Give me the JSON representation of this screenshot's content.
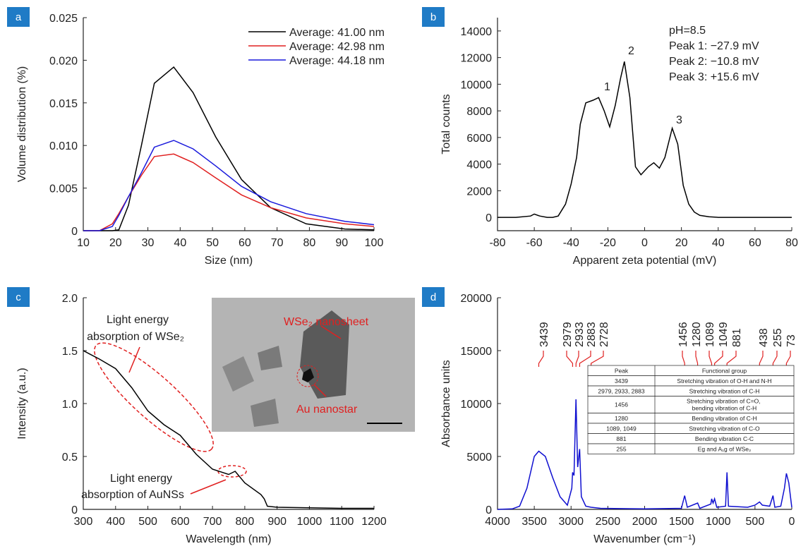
{
  "chart_data": [
    {
      "type": "line",
      "panel_label": "a",
      "xlabel": "Size (nm)",
      "ylabel": "Volume distribution (%)",
      "x": [
        10,
        15,
        19,
        21,
        24,
        28,
        32,
        38,
        44,
        51,
        59,
        68,
        79,
        91,
        100
      ],
      "series": [
        {
          "name": "Average: 41.00 nm",
          "color": "#000000",
          "values": [
            0,
            0,
            0,
            0.0001,
            0.003,
            0.01,
            0.0173,
            0.0192,
            0.0162,
            0.011,
            0.006,
            0.0027,
            0.0008,
            0.0002,
            0.0001
          ]
        },
        {
          "name": "Average: 42.98 nm",
          "color": "#e02020",
          "values": [
            0,
            0,
            0.0008,
            0.002,
            0.004,
            0.0065,
            0.0087,
            0.009,
            0.008,
            0.0062,
            0.0042,
            0.0027,
            0.0015,
            0.0008,
            0.0005
          ]
        },
        {
          "name": "Average: 44.18 nm",
          "color": "#1a1adc",
          "values": [
            0,
            0,
            0.0005,
            0.0018,
            0.004,
            0.0068,
            0.0098,
            0.0106,
            0.0096,
            0.0076,
            0.0052,
            0.0034,
            0.002,
            0.0011,
            0.0007
          ]
        }
      ],
      "xlim": [
        10,
        100
      ],
      "xticks": [
        10,
        20,
        30,
        40,
        50,
        60,
        70,
        80,
        90,
        100
      ],
      "ylim": [
        0,
        0.025
      ],
      "yticks": [
        0,
        0.005,
        {
          "value": 0.01,
          "label": "0.010"
        },
        0.015,
        {
          "value": 0.02,
          "label": "0.020"
        },
        0.025
      ],
      "legend": "upper right"
    },
    {
      "type": "line",
      "panel_label": "b",
      "xlabel": "Apparent zeta potential (mV)",
      "ylabel": "Total counts",
      "x": [
        -80,
        -70,
        -62,
        -60,
        -57,
        -53,
        -50,
        -47,
        -43,
        -40,
        -37,
        -35,
        -32,
        -28,
        -25,
        -22,
        -19,
        -16,
        -13,
        -11,
        -8,
        -5,
        -2,
        2,
        5,
        8,
        11,
        15,
        18,
        21,
        24,
        27,
        30,
        35,
        40,
        50,
        80
      ],
      "series": [
        {
          "color": "#000000",
          "values": [
            0,
            0,
            100,
            250,
            100,
            0,
            0,
            100,
            1000,
            2500,
            4500,
            7000,
            8600,
            8800,
            9000,
            8000,
            6800,
            8400,
            10500,
            11700,
            9000,
            3800,
            3200,
            3800,
            4100,
            3700,
            4500,
            6700,
            5500,
            2400,
            1000,
            400,
            150,
            50,
            0,
            0,
            0
          ]
        }
      ],
      "xlim": [
        -80,
        80
      ],
      "xticks": [
        -80,
        -60,
        -40,
        -20,
        0,
        20,
        40,
        60,
        80
      ],
      "ylim": [
        -1000,
        15000
      ],
      "yticks": [
        0,
        2000,
        4000,
        6000,
        8000,
        10000,
        12000,
        14000
      ],
      "annotations": [
        "1",
        "2",
        "3",
        "pH=8.5",
        "Peak 1: −27.9 mV",
        "Peak 2: −10.8 mV",
        "Peak 3: +15.6 mV"
      ]
    },
    {
      "type": "line",
      "panel_label": "c",
      "xlabel": "Wavelength (nm)",
      "ylabel": "Intensity (a.u.)",
      "x": [
        300,
        350,
        400,
        450,
        500,
        550,
        600,
        650,
        700,
        750,
        770,
        800,
        850,
        860,
        870,
        900,
        1000,
        1100,
        1200
      ],
      "series": [
        {
          "color": "#000000",
          "values": [
            1.5,
            1.42,
            1.33,
            1.15,
            0.93,
            0.8,
            0.7,
            0.52,
            0.38,
            0.33,
            0.36,
            0.25,
            0.14,
            0.1,
            0.03,
            0.02,
            0.015,
            0.01,
            0.01
          ]
        }
      ],
      "xlim": [
        300,
        1200
      ],
      "xticks": [
        300,
        400,
        500,
        600,
        700,
        800,
        900,
        1000,
        1100,
        1200
      ],
      "ylim": [
        0,
        2
      ],
      "yticks": [
        0,
        0.5,
        {
          "value": 1,
          "label": "1.0"
        },
        1.5,
        {
          "value": 2,
          "label": "2.0"
        }
      ],
      "annotations": [
        "Light energy",
        "absorption of WSe₂",
        "Light energy",
        "absorption of AuNSs",
        "WSe₂ nanosheet",
        "Au nanostar"
      ]
    },
    {
      "type": "line",
      "panel_label": "d",
      "xlabel": "Wavenumber (cm⁻¹)",
      "ylabel": "Absorbance units",
      "x": [
        4000,
        3800,
        3700,
        3600,
        3500,
        3439,
        3350,
        3250,
        3150,
        3050,
        2990,
        2979,
        2960,
        2933,
        2910,
        2883,
        2860,
        2800,
        2728,
        2600,
        2000,
        1500,
        1456,
        1420,
        1280,
        1250,
        1100,
        1089,
        1070,
        1049,
        1020,
        900,
        881,
        860,
        600,
        500,
        438,
        400,
        300,
        255,
        230,
        150,
        100,
        73,
        40,
        0
      ],
      "series": [
        {
          "color": "#1010d0",
          "values": [
            0,
            50,
            300,
            2000,
            5000,
            5500,
            5000,
            3000,
            1200,
            400,
            2000,
            3500,
            3200,
            10400,
            4000,
            5700,
            1200,
            300,
            200,
            100,
            50,
            100,
            1300,
            200,
            600,
            100,
            500,
            1000,
            600,
            1000,
            200,
            300,
            3500,
            300,
            200,
            400,
            700,
            400,
            300,
            1300,
            200,
            300,
            2000,
            3400,
            2500,
            200
          ]
        }
      ],
      "xlim": [
        4000,
        0
      ],
      "xticks": [
        4000,
        3500,
        3000,
        2500,
        2000,
        1500,
        1000,
        500,
        0
      ],
      "ylim": [
        0,
        20000
      ],
      "yticks": [
        0,
        5000,
        10000,
        15000,
        20000
      ],
      "peaks": [
        3439,
        2979,
        2933,
        2883,
        2728,
        1456,
        1280,
        1089,
        1049,
        881,
        438,
        255,
        73
      ],
      "table": {
        "header": [
          "Peak",
          "Functional group"
        ],
        "rows": [
          [
            "3439",
            "Stretching vibration of O-H and N-H"
          ],
          [
            "2979, 2933, 2883",
            "Stretching vibration of C-H"
          ],
          [
            "1456",
            "Stretching vibration of C=O, bending vibration of C-H"
          ],
          [
            "1280",
            "Bending vibration of C-H"
          ],
          [
            "1089, 1049",
            "Stretching vibration of C-O"
          ],
          [
            "881",
            "Bending vibration C-C"
          ],
          [
            "255",
            "Eg and A₁g of WSe₂"
          ]
        ]
      }
    }
  ]
}
